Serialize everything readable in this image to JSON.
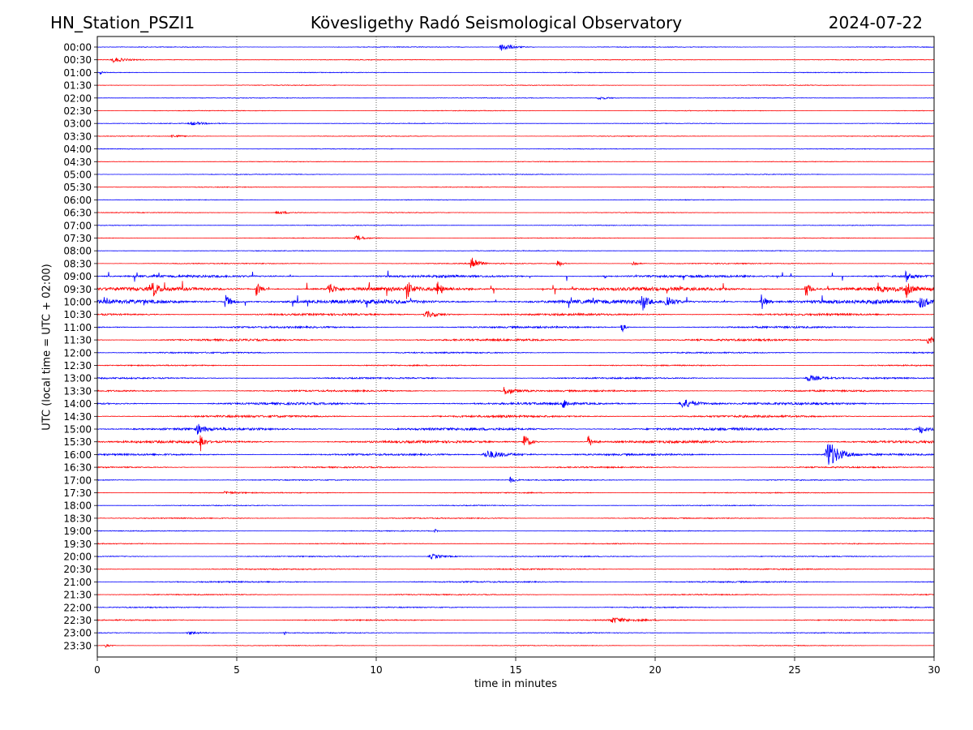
{
  "header": {
    "station": "HN_Station_PSZI1",
    "title": "Kövesligethy Radó Seismological Observatory",
    "date": "2024-07-22"
  },
  "chart_data": {
    "type": "line",
    "title": "Kövesligethy Radó Seismological Observatory",
    "xlabel": "time in minutes",
    "ylabel": "UTC (local time = UTC + 02:00)",
    "xlim": [
      0,
      30
    ],
    "xticks": [
      0,
      5,
      10,
      15,
      20,
      25,
      30
    ],
    "grid": "vertical dotted at x ticks",
    "colors": [
      "#0000ff",
      "#ff0000"
    ],
    "rows": [
      "00:00",
      "00:30",
      "01:00",
      "01:30",
      "02:00",
      "02:30",
      "03:00",
      "03:30",
      "04:00",
      "04:30",
      "05:00",
      "05:30",
      "06:00",
      "06:30",
      "07:00",
      "07:30",
      "08:00",
      "08:30",
      "09:00",
      "09:30",
      "10:00",
      "10:30",
      "11:00",
      "11:30",
      "12:00",
      "12:30",
      "13:00",
      "13:30",
      "14:00",
      "14:30",
      "15:00",
      "15:30",
      "16:00",
      "16:30",
      "17:00",
      "17:30",
      "18:00",
      "18:30",
      "19:00",
      "19:30",
      "20:00",
      "20:30",
      "21:00",
      "21:30",
      "22:00",
      "22:30",
      "23:00",
      "23:30"
    ],
    "noise": [
      0.4,
      0.4,
      0.4,
      0.4,
      0.4,
      0.4,
      0.4,
      0.4,
      0.4,
      0.4,
      0.4,
      0.4,
      0.4,
      0.4,
      0.4,
      0.4,
      0.4,
      0.6,
      1.4,
      2.2,
      2.4,
      1.2,
      1.1,
      1.2,
      0.8,
      0.7,
      0.9,
      1.0,
      1.4,
      1.3,
      1.6,
      1.5,
      1.1,
      0.8,
      0.6,
      0.6,
      0.5,
      0.6,
      0.5,
      0.5,
      0.6,
      0.7,
      0.8,
      0.6,
      0.6,
      0.7,
      0.5,
      0.4
    ],
    "events": [
      {
        "row": "00:00",
        "t": 14.5,
        "amp": 5,
        "dur": 0.8
      },
      {
        "row": "00:30",
        "t": 0.6,
        "amp": 3,
        "dur": 0.8
      },
      {
        "row": "01:00",
        "t": 0.1,
        "amp": 2,
        "dur": 0.2
      },
      {
        "row": "02:00",
        "t": 18.0,
        "amp": 2,
        "dur": 0.8
      },
      {
        "row": "03:00",
        "t": 3.4,
        "amp": 2,
        "dur": 1.0
      },
      {
        "row": "03:30",
        "t": 2.7,
        "amp": 2,
        "dur": 0.6
      },
      {
        "row": "06:30",
        "t": 6.5,
        "amp": 2,
        "dur": 1.0
      },
      {
        "row": "07:30",
        "t": 9.3,
        "amp": 3,
        "dur": 0.6
      },
      {
        "row": "08:30",
        "t": 13.4,
        "amp": 12,
        "dur": 0.4
      },
      {
        "row": "08:30",
        "t": 16.5,
        "amp": 5,
        "dur": 0.3
      },
      {
        "row": "08:30",
        "t": 19.2,
        "amp": 4,
        "dur": 0.3
      },
      {
        "row": "09:00",
        "t": 29.0,
        "amp": 7,
        "dur": 0.3
      },
      {
        "row": "09:30",
        "t": 2.0,
        "amp": 10,
        "dur": 0.3
      },
      {
        "row": "09:30",
        "t": 5.7,
        "amp": 9,
        "dur": 0.3
      },
      {
        "row": "09:30",
        "t": 8.3,
        "amp": 9,
        "dur": 0.4
      },
      {
        "row": "09:30",
        "t": 11.1,
        "amp": 12,
        "dur": 0.3
      },
      {
        "row": "09:30",
        "t": 12.2,
        "amp": 10,
        "dur": 0.3
      },
      {
        "row": "09:30",
        "t": 25.4,
        "amp": 11,
        "dur": 0.3
      },
      {
        "row": "09:30",
        "t": 28.0,
        "amp": 9,
        "dur": 0.3
      },
      {
        "row": "09:30",
        "t": 29.0,
        "amp": 10,
        "dur": 0.3
      },
      {
        "row": "10:00",
        "t": 4.6,
        "amp": 9,
        "dur": 0.4
      },
      {
        "row": "10:00",
        "t": 19.5,
        "amp": 14,
        "dur": 0.3
      },
      {
        "row": "10:00",
        "t": 20.4,
        "amp": 9,
        "dur": 0.4
      },
      {
        "row": "10:00",
        "t": 23.8,
        "amp": 12,
        "dur": 0.3
      },
      {
        "row": "10:00",
        "t": 29.5,
        "amp": 9,
        "dur": 0.5
      },
      {
        "row": "10:30",
        "t": 11.8,
        "amp": 4,
        "dur": 1.0
      },
      {
        "row": "11:00",
        "t": 18.8,
        "amp": 8,
        "dur": 0.2
      },
      {
        "row": "11:30",
        "t": 29.8,
        "amp": 6,
        "dur": 0.4
      },
      {
        "row": "13:00",
        "t": 25.5,
        "amp": 4,
        "dur": 0.8
      },
      {
        "row": "13:30",
        "t": 14.6,
        "amp": 5,
        "dur": 0.8
      },
      {
        "row": "14:00",
        "t": 16.7,
        "amp": 7,
        "dur": 0.3
      },
      {
        "row": "14:00",
        "t": 21.0,
        "amp": 6,
        "dur": 1.0
      },
      {
        "row": "15:00",
        "t": 3.6,
        "amp": 6,
        "dur": 0.4
      },
      {
        "row": "15:00",
        "t": 29.5,
        "amp": 6,
        "dur": 0.3
      },
      {
        "row": "15:30",
        "t": 3.7,
        "amp": 14,
        "dur": 0.2
      },
      {
        "row": "15:30",
        "t": 15.3,
        "amp": 10,
        "dur": 0.4
      },
      {
        "row": "15:30",
        "t": 17.6,
        "amp": 8,
        "dur": 0.3
      },
      {
        "row": "16:00",
        "t": 14.0,
        "amp": 5,
        "dur": 1.5
      },
      {
        "row": "16:00",
        "t": 26.2,
        "amp": 18,
        "dur": 0.8
      },
      {
        "row": "17:00",
        "t": 14.8,
        "amp": 4,
        "dur": 0.3
      },
      {
        "row": "17:30",
        "t": 4.6,
        "amp": 2,
        "dur": 0.6
      },
      {
        "row": "19:00",
        "t": 12.1,
        "amp": 3,
        "dur": 0.1
      },
      {
        "row": "20:00",
        "t": 12.0,
        "amp": 3,
        "dur": 1.0
      },
      {
        "row": "22:30",
        "t": 18.5,
        "amp": 3,
        "dur": 1.2
      },
      {
        "row": "23:00",
        "t": 6.7,
        "amp": 4,
        "dur": 0.1
      },
      {
        "row": "23:00",
        "t": 3.3,
        "amp": 2,
        "dur": 1.0
      },
      {
        "row": "23:30",
        "t": 0.3,
        "amp": 2,
        "dur": 0.3
      }
    ]
  }
}
